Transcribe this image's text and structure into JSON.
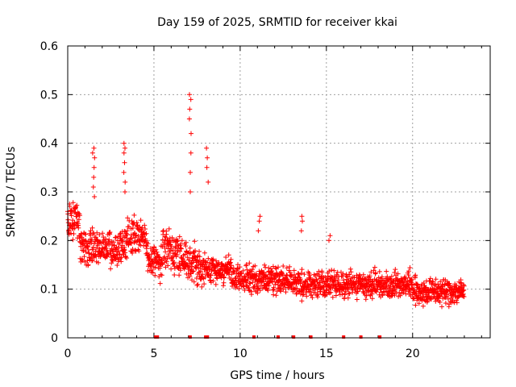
{
  "chart_data": {
    "type": "scatter",
    "title": "Day 159 of 2025, SRMTID for receiver kkai",
    "xlabel": "GPS time / hours",
    "ylabel": "SRMTID / TECUs",
    "xlim": [
      0,
      24.5
    ],
    "ylim": [
      0,
      0.6
    ],
    "xticks": [
      0,
      5,
      10,
      15,
      20
    ],
    "xtick_labels": [
      "0",
      "5",
      "10",
      "15",
      "20"
    ],
    "yticks": [
      0,
      0.1,
      0.2,
      0.3,
      0.4,
      0.5,
      0.6
    ],
    "ytick_labels": [
      "0",
      "0.1",
      "0.2",
      "0.3",
      "0.4",
      "0.5",
      "0.6"
    ],
    "grid": true,
    "legend": "none",
    "marker": "+",
    "color": "#ff0000",
    "data_range_x": [
      0,
      23
    ],
    "bursts": [
      {
        "x": 1.5,
        "values": [
          0.29,
          0.31,
          0.33,
          0.35,
          0.37,
          0.38,
          0.39
        ]
      },
      {
        "x": 3.3,
        "values": [
          0.3,
          0.32,
          0.34,
          0.36,
          0.38,
          0.39,
          0.4
        ]
      },
      {
        "x": 7.1,
        "values": [
          0.3,
          0.34,
          0.38,
          0.42,
          0.45,
          0.47,
          0.49,
          0.5
        ]
      },
      {
        "x": 8.1,
        "values": [
          0.32,
          0.35,
          0.37,
          0.39
        ]
      },
      {
        "x": 11.1,
        "values": [
          0.22,
          0.24,
          0.25
        ]
      },
      {
        "x": 13.6,
        "values": [
          0.22,
          0.24,
          0.25
        ]
      },
      {
        "x": 15.2,
        "values": [
          0.2,
          0.21
        ]
      }
    ],
    "zero_x": [
      5.1,
      5.2,
      7.1,
      8.0,
      8.1,
      10.8,
      12.2,
      13.1,
      14.1,
      16.0,
      17.0,
      18.1
    ]
  }
}
